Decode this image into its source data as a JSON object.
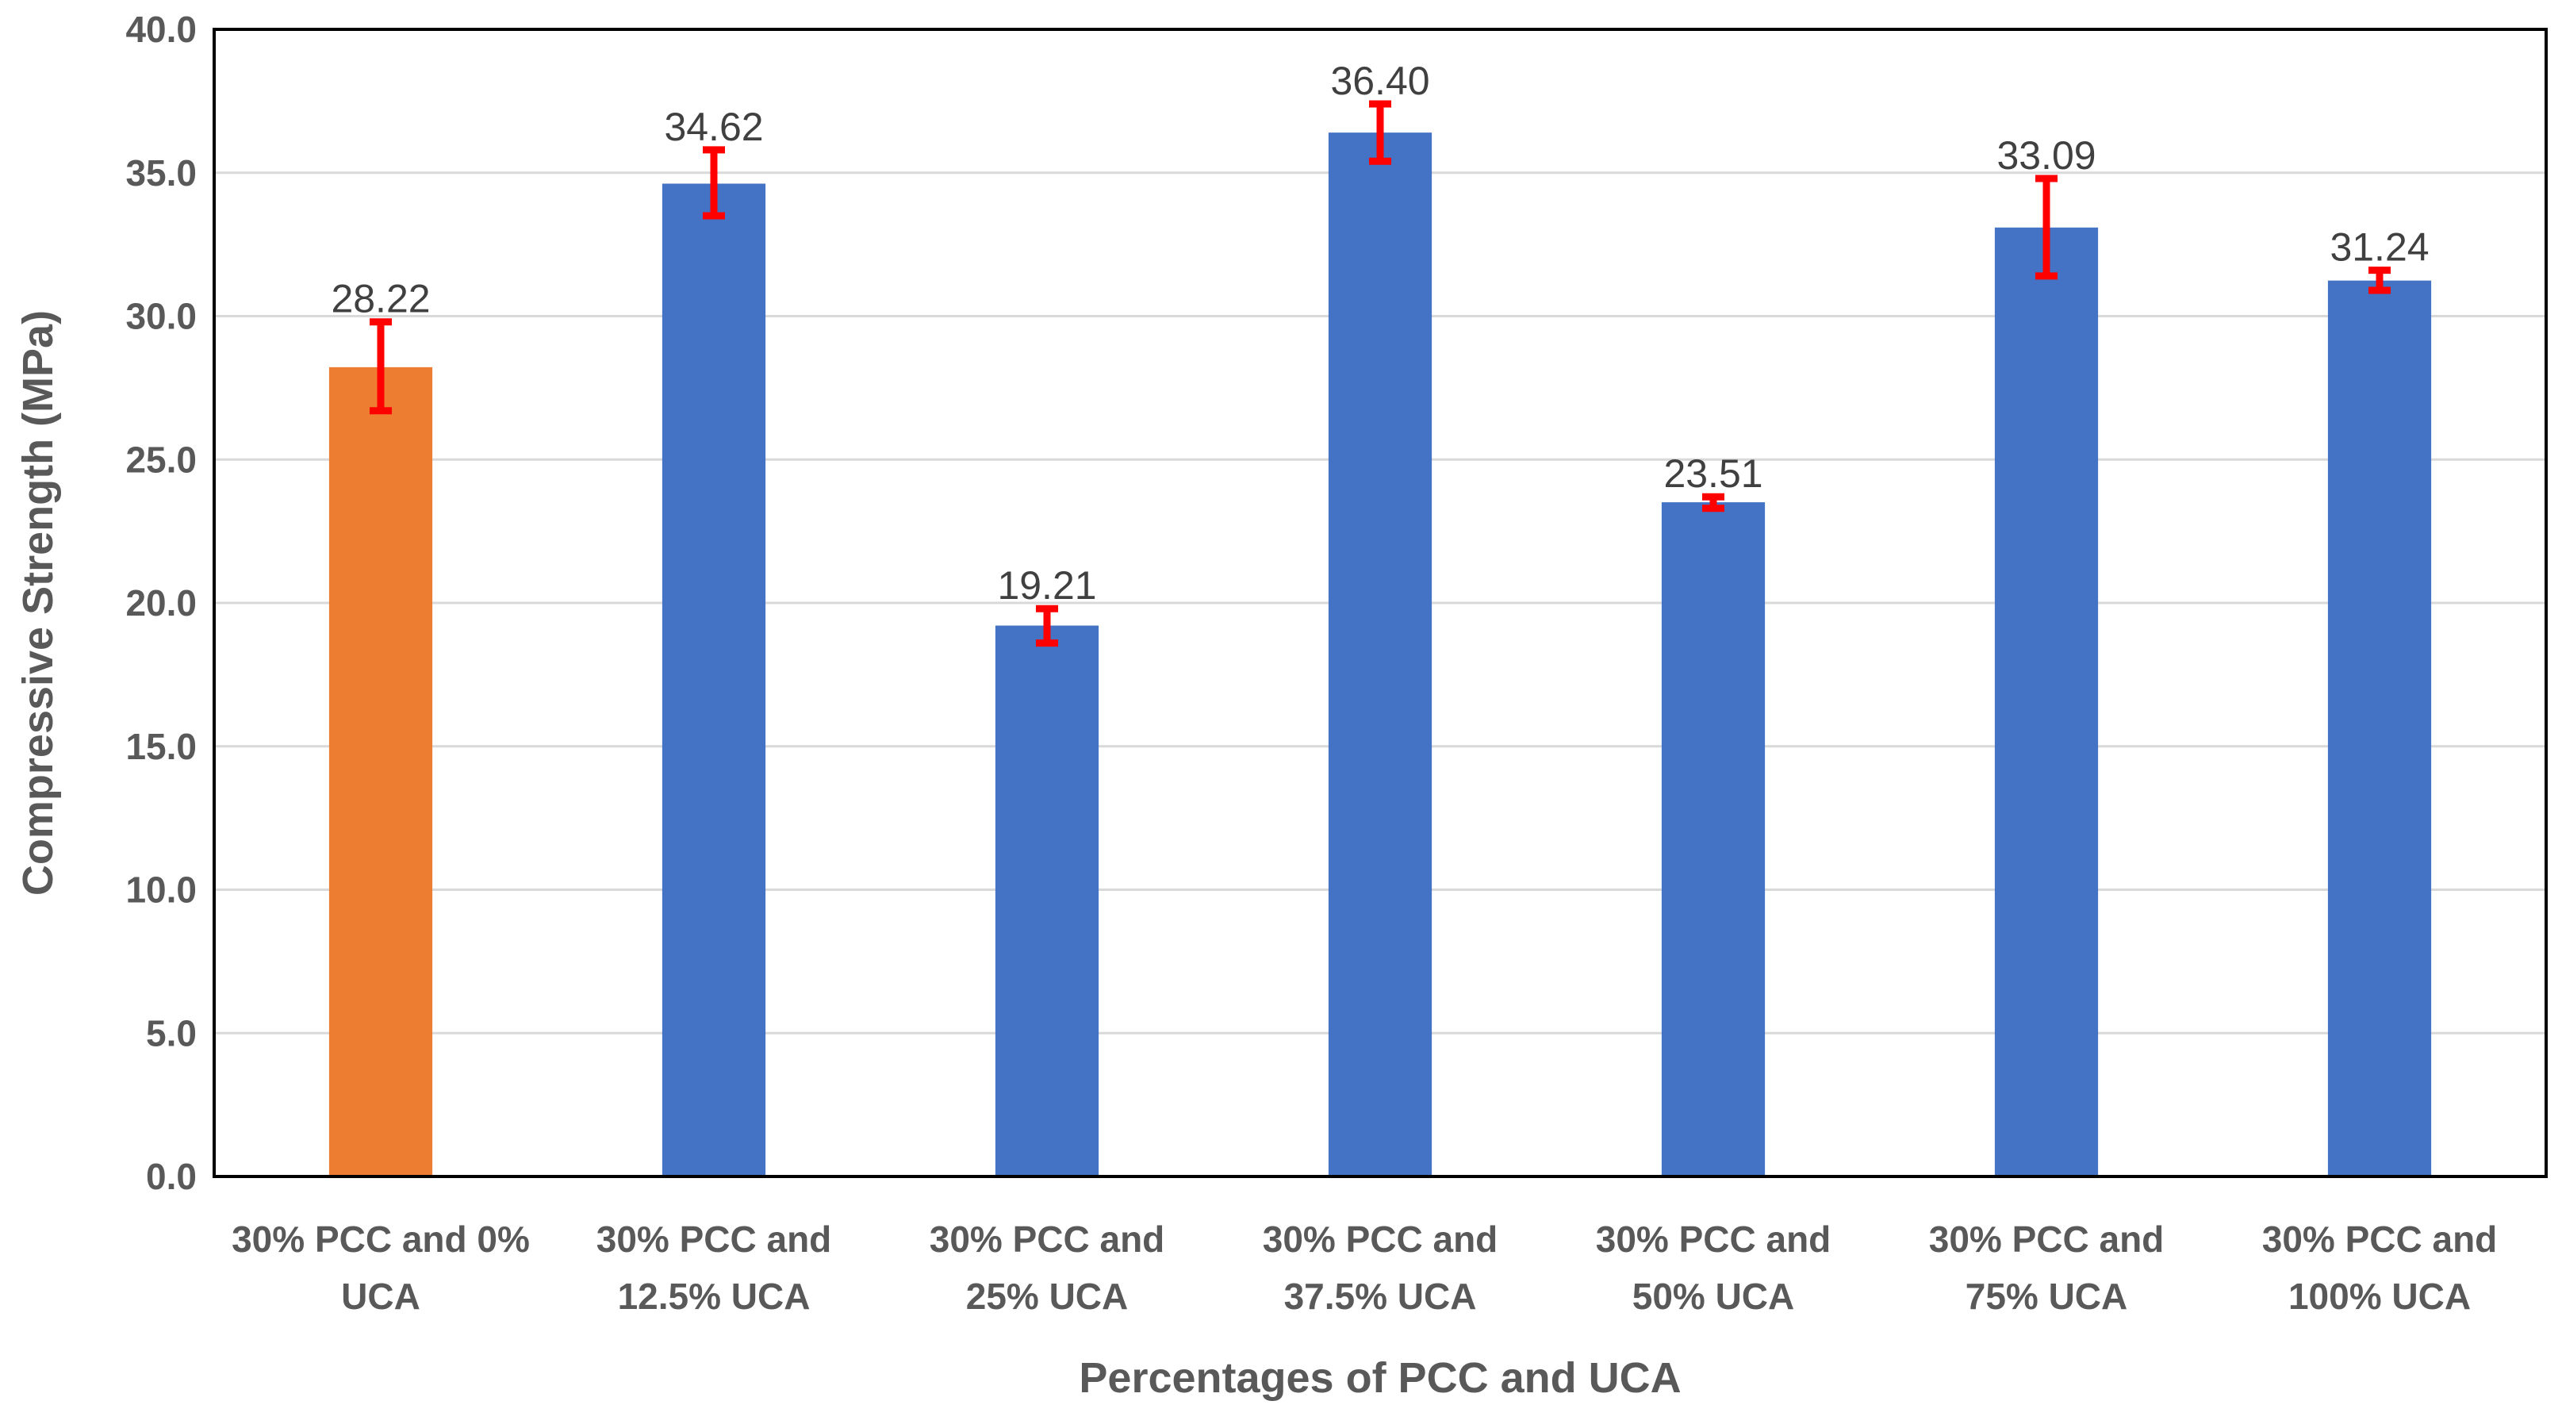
{
  "chart_data": {
    "type": "bar",
    "title": "",
    "xlabel": "Percentages of PCC and UCA",
    "ylabel": "Compressive Strength (MPa)",
    "ylim": [
      0,
      40
    ],
    "yticks": [
      "0.0",
      "5.0",
      "10.0",
      "15.0",
      "20.0",
      "25.0",
      "30.0",
      "35.0",
      "40.0"
    ],
    "ytick_values": [
      0,
      5,
      10,
      15,
      20,
      25,
      30,
      35,
      40
    ],
    "grid": true,
    "legend": "none",
    "categories": [
      [
        "30% PCC and 0%",
        "UCA"
      ],
      [
        "30% PCC and",
        "12.5% UCA"
      ],
      [
        "30% PCC and",
        "25% UCA"
      ],
      [
        "30% PCC and",
        "37.5% UCA"
      ],
      [
        "30% PCC and",
        "50% UCA"
      ],
      [
        "30% PCC and",
        "75% UCA"
      ],
      [
        "30% PCC and",
        "100% UCA"
      ]
    ],
    "values": [
      28.22,
      34.62,
      19.21,
      36.4,
      23.51,
      33.09,
      31.24
    ],
    "value_labels": [
      "28.22",
      "34.62",
      "19.21",
      "36.40",
      "23.51",
      "33.09",
      "31.24"
    ],
    "error_low": [
      26.7,
      33.5,
      18.6,
      35.4,
      23.3,
      31.4,
      30.9
    ],
    "error_high": [
      29.8,
      35.8,
      19.8,
      37.4,
      23.7,
      34.8,
      31.6
    ],
    "bar_colors": [
      "#ed7d31",
      "#4472c4",
      "#4472c4",
      "#4472c4",
      "#4472c4",
      "#4472c4",
      "#4472c4"
    ],
    "error_color": "#ff0000"
  }
}
